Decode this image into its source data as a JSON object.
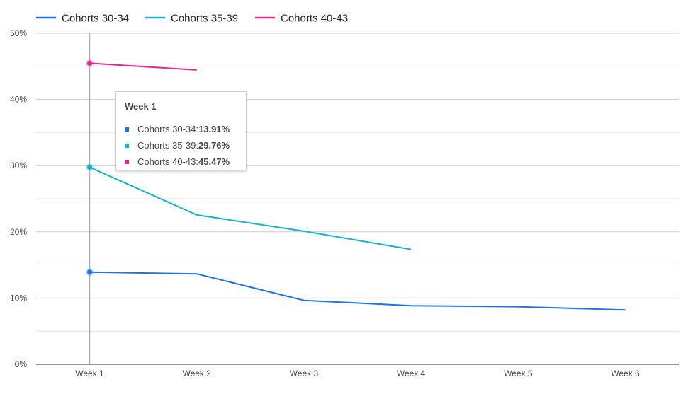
{
  "chart_data": {
    "type": "line",
    "categories": [
      "Week 1",
      "Week 2",
      "Week 3",
      "Week 4",
      "Week 5",
      "Week 6"
    ],
    "series": [
      {
        "name": "Cohorts 30-34",
        "color": "#1a73e8",
        "values": [
          13.91,
          13.65,
          9.65,
          8.85,
          8.7,
          8.2
        ]
      },
      {
        "name": "Cohorts 35-39",
        "color": "#12b5cb",
        "values": [
          29.76,
          22.55,
          20.1,
          17.35,
          null,
          null
        ]
      },
      {
        "name": "Cohorts 40-43",
        "color": "#e52592",
        "values": [
          45.47,
          44.45,
          null,
          null,
          null,
          null
        ]
      }
    ],
    "y_ticks": [
      "0%",
      "10%",
      "20%",
      "30%",
      "40%",
      "50%"
    ],
    "ylim": [
      0,
      50
    ],
    "grid": true,
    "legend_position": "top-left"
  },
  "tooltip": {
    "title": "Week 1",
    "rows": [
      {
        "label": "Cohorts 30-34: ",
        "value": "13.91%",
        "color": "#1a73e8"
      },
      {
        "label": "Cohorts 35-39: ",
        "value": "29.76%",
        "color": "#12b5cb"
      },
      {
        "label": "Cohorts 40-43: ",
        "value": "45.47%",
        "color": "#e52592"
      }
    ]
  }
}
